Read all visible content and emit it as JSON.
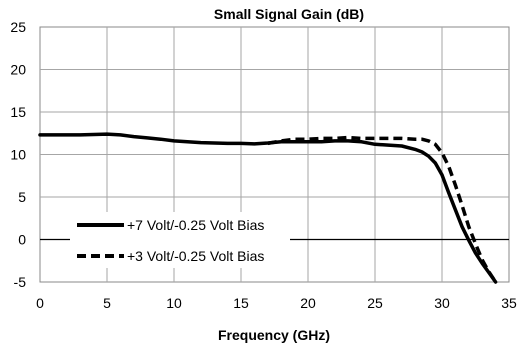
{
  "chart_data": {
    "type": "line",
    "title": "Small Signal Gain (dB)",
    "xlabel": "Frequency (GHz)",
    "ylabel": "",
    "xlim": [
      0,
      35
    ],
    "ylim": [
      -5,
      25
    ],
    "x_ticks": [
      0,
      5,
      10,
      15,
      20,
      25,
      30,
      35
    ],
    "y_ticks": [
      -5,
      0,
      5,
      10,
      15,
      20,
      25
    ],
    "grid": true,
    "legend_position": "bottom-left",
    "series": [
      {
        "name": "+7 Volt/-0.25 Volt Bias",
        "style": "solid",
        "color": "#000000",
        "x": [
          0,
          1,
          2,
          3,
          4,
          5,
          6,
          7,
          8,
          9,
          10,
          11,
          12,
          13,
          14,
          15,
          16,
          17,
          18,
          19,
          20,
          21,
          22,
          23,
          24,
          25,
          26,
          27,
          28,
          28.5,
          29,
          29.5,
          30,
          30.5,
          31,
          31.5,
          32,
          32.5,
          33,
          33.5,
          34
        ],
        "y": [
          12.3,
          12.3,
          12.3,
          12.3,
          12.35,
          12.4,
          12.3,
          12.1,
          11.95,
          11.8,
          11.6,
          11.5,
          11.4,
          11.35,
          11.3,
          11.3,
          11.25,
          11.35,
          11.5,
          11.5,
          11.5,
          11.5,
          11.6,
          11.6,
          11.5,
          11.2,
          11.1,
          11.0,
          10.6,
          10.3,
          9.8,
          9.0,
          7.6,
          5.5,
          3.5,
          1.5,
          -0.1,
          -1.6,
          -2.8,
          -3.9,
          -5.0
        ]
      },
      {
        "name": "+3 Volt/-0.25 Volt Bias",
        "style": "dashed",
        "color": "#000000",
        "x": [
          17,
          18,
          19,
          20,
          21,
          22,
          23,
          24,
          25,
          26,
          27,
          28,
          28.5,
          29,
          29.5,
          30,
          30.5,
          31,
          31.5,
          32,
          32.5,
          33,
          33.5,
          34
        ],
        "y": [
          11.3,
          11.6,
          11.8,
          11.8,
          11.9,
          11.9,
          12.0,
          11.9,
          11.9,
          11.9,
          11.9,
          11.8,
          11.8,
          11.6,
          11.2,
          10.2,
          8.6,
          6.4,
          4.0,
          1.5,
          -0.5,
          -2.4,
          -3.8,
          -5.0
        ]
      }
    ]
  }
}
